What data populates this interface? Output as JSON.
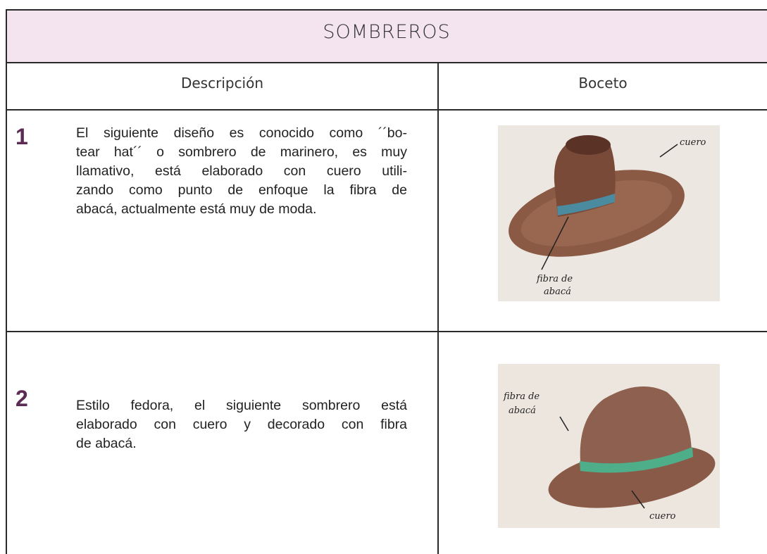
{
  "header": {
    "title": "SOMBREROS"
  },
  "table": {
    "columns": [
      "Descripción",
      "Boceto"
    ],
    "rows": [
      {
        "number": "1",
        "description": [
          "El siguiente diseño es conocido como ´´bo-",
          "tear hat´´ o sombrero de marinero, es muy",
          "llamativo, está elaborado con cuero utili-",
          "zando como punto de enfoque la fibra de",
          "abacá, actualmente está muy de moda."
        ],
        "sketch_labels": [
          "cuero",
          "fibra de",
          "abacá"
        ]
      },
      {
        "number": "2",
        "description": [
          "Estilo fedora, el siguiente sombrero está",
          "elaborado con cuero y decorado con fibra",
          "de abacá."
        ],
        "sketch_labels": [
          "fibra de",
          "abacá",
          "cuero"
        ]
      }
    ]
  }
}
